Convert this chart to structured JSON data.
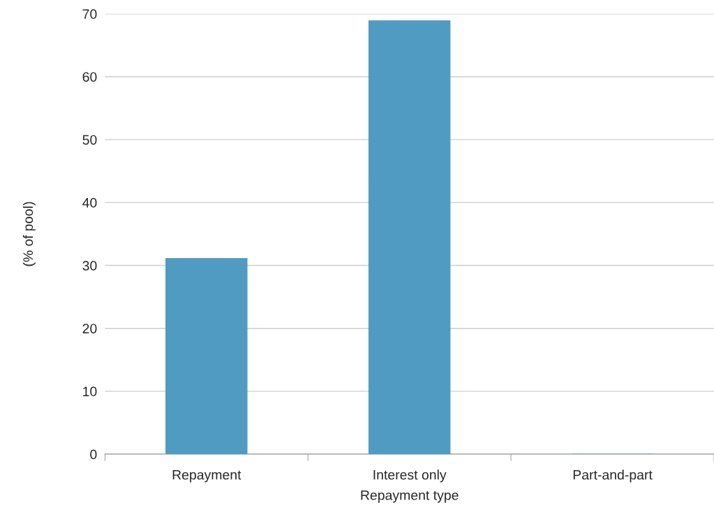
{
  "chart_data": {
    "type": "bar",
    "categories": [
      "Repayment",
      "Interest only",
      "Part-and-part"
    ],
    "values": [
      31.1,
      68.9,
      0
    ],
    "color": "#4f9bc2",
    "xlabel": "Repayment type",
    "ylabel": "(% of pool)",
    "ylim": [
      0,
      70
    ],
    "yticks": [
      0,
      10,
      20,
      30,
      40,
      50,
      60,
      70
    ],
    "grid": "y"
  }
}
